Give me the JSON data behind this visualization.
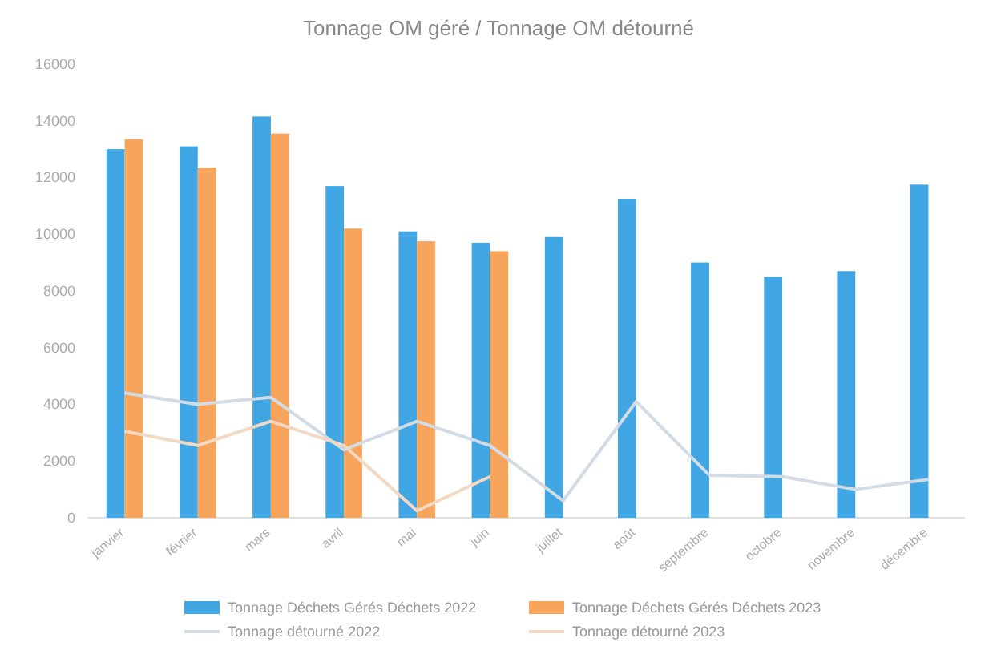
{
  "chart_data": {
    "type": "bar",
    "title": "Tonnage OM géré / Tonnage OM détourné",
    "categories": [
      "janvier",
      "février",
      "mars",
      "avril",
      "mai",
      "juin",
      "juillet",
      "août",
      "septembre",
      "octobre",
      "novembre",
      "décembre"
    ],
    "series": [
      {
        "name": "Tonnage Déchets Gérés Déchets 2022",
        "color": "#41a6e4",
        "values": [
          13000,
          13100,
          14150,
          11700,
          10100,
          9700,
          9900,
          11250,
          9000,
          8500,
          8700,
          11750
        ]
      },
      {
        "name": "Tonnage Déchets Gérés Déchets 2023",
        "color": "#f7a55c",
        "values": [
          13350,
          12350,
          13550,
          10200,
          9750,
          9400,
          null,
          null,
          null,
          null,
          null,
          null
        ]
      },
      {
        "name": "Tonnage détourné 2022",
        "type": "line",
        "color": "#d3dbe4",
        "values": [
          4400,
          4000,
          4250,
          2400,
          3400,
          2550,
          600,
          4100,
          1500,
          1450,
          1000,
          1350
        ]
      },
      {
        "name": "Tonnage détourné 2023",
        "type": "line",
        "color": "#f2d9c4",
        "values": [
          3050,
          2550,
          3400,
          2550,
          250,
          1450,
          null,
          null,
          null,
          null,
          null,
          null
        ]
      }
    ],
    "ylim": [
      0,
      16000
    ],
    "yticks": [
      0,
      2000,
      4000,
      6000,
      8000,
      10000,
      12000,
      14000,
      16000
    ],
    "grid": false,
    "legend": "bottom",
    "marker": "none",
    "line_style": "solid"
  }
}
